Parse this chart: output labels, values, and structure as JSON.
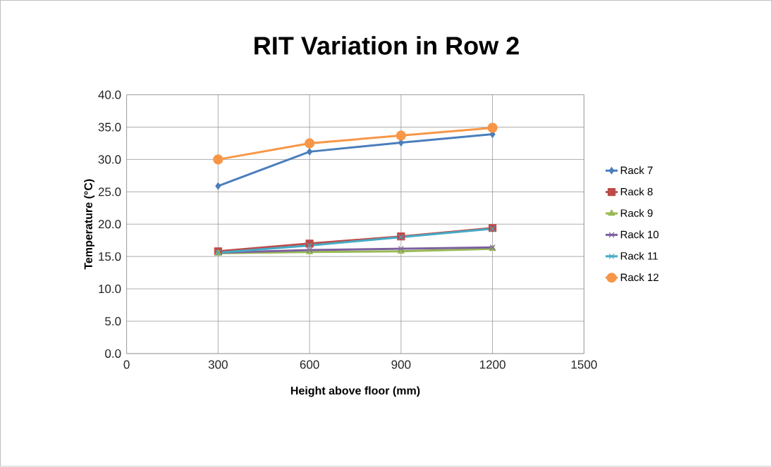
{
  "chart_data": {
    "type": "line",
    "title": "RIT Variation in Row 2",
    "xlabel": "Height above floor (mm)",
    "ylabel": "Temperature (°C)",
    "x": [
      300,
      600,
      900,
      1200
    ],
    "series": [
      {
        "name": "Rack 7",
        "color": "#4a7ebb",
        "marker": "diamond",
        "values": [
          25.9,
          31.2,
          32.6,
          33.9
        ]
      },
      {
        "name": "Rack 8",
        "color": "#be4b48",
        "marker": "square",
        "values": [
          15.8,
          17.0,
          18.1,
          19.4
        ]
      },
      {
        "name": "Rack 9",
        "color": "#98b954",
        "marker": "triangle",
        "values": [
          15.5,
          15.7,
          15.8,
          16.2
        ]
      },
      {
        "name": "Rack 10",
        "color": "#7d60a0",
        "marker": "cross",
        "values": [
          15.6,
          16.0,
          16.2,
          16.4
        ]
      },
      {
        "name": "Rack 11",
        "color": "#46aac5",
        "marker": "cross",
        "values": [
          15.6,
          16.7,
          18.0,
          19.3
        ]
      },
      {
        "name": "Rack 12",
        "color": "#f79646",
        "marker": "circle",
        "values": [
          30.0,
          32.5,
          33.7,
          34.9
        ]
      }
    ],
    "xlim": [
      0,
      1500
    ],
    "xticks": [
      0,
      300,
      600,
      900,
      1200,
      1500
    ],
    "ylim": [
      0,
      40
    ],
    "yticks": [
      {
        "value": 0,
        "label": "0.0"
      },
      {
        "value": 5,
        "label": "5.0"
      },
      {
        "value": 10,
        "label": "10.0"
      },
      {
        "value": 15,
        "label": "15.0"
      },
      {
        "value": 20,
        "label": "20.0"
      },
      {
        "value": 25,
        "label": "25.0"
      },
      {
        "value": 30,
        "label": "30.0"
      },
      {
        "value": 35,
        "label": "35.0"
      },
      {
        "value": 40,
        "label": "40.0"
      }
    ],
    "grid": true,
    "legend": "right",
    "line_style": "solid"
  }
}
